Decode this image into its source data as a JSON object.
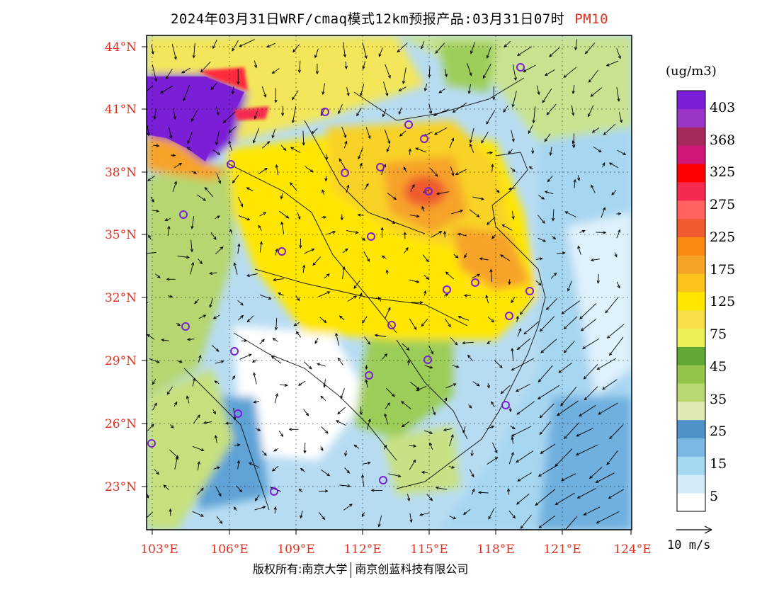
{
  "title": {
    "main": "2024年03月31日WRF/cmaq模式12km预报产品:03月31日07时",
    "product": "PM10"
  },
  "lat_labels": [
    "44°N",
    "41°N",
    "38°N",
    "35°N",
    "32°N",
    "29°N",
    "26°N",
    "23°N"
  ],
  "lon_labels": [
    "103°E",
    "106°E",
    "109°E",
    "112°E",
    "115°E",
    "118°E",
    "121°E",
    "124°E"
  ],
  "colorbar": {
    "unit": "(ug/m3)",
    "labels": [
      "403",
      "368",
      "325",
      "275",
      "225",
      "175",
      "125",
      "75",
      "45",
      "35",
      "25",
      "15",
      "5"
    ],
    "colors": [
      "#ffffff",
      "#d4ecf7",
      "#a6d8f2",
      "#7ab8e3",
      "#4f92c9",
      "#dfe9b4",
      "#b8d872",
      "#94c54a",
      "#62a834",
      "#eef05a",
      "#f7de4a",
      "#ffe600",
      "#fbc21c",
      "#f7a32a",
      "#f98a12",
      "#ef5a2e",
      "#ff6060",
      "#f52a50",
      "#ff0000",
      "#d1167a",
      "#a6295c",
      "#9b35c9",
      "#7b1fd6"
    ]
  },
  "wind_reference": "10 m/s",
  "footer": {
    "left": "版权所有:南京大学",
    "right": "南京创蓝科技有限公司"
  }
}
